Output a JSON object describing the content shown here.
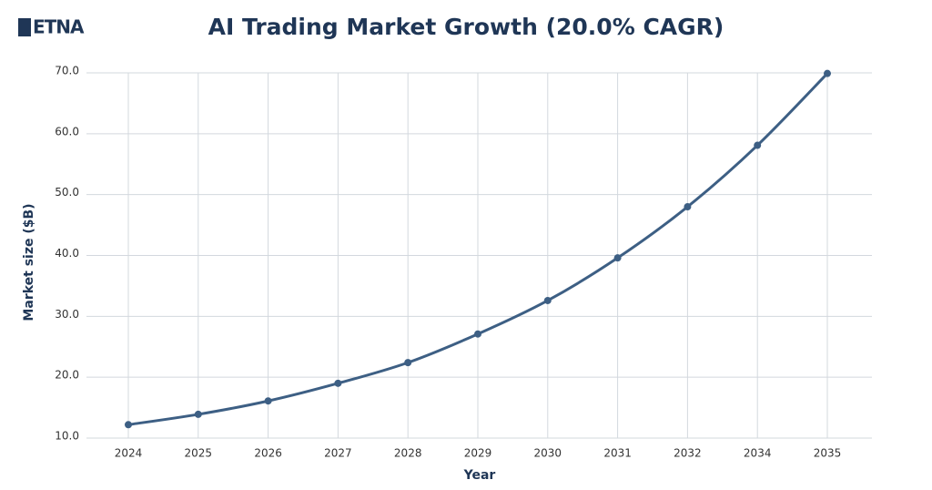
{
  "logo": "ETNA",
  "chart_data": {
    "type": "line",
    "title": "AI Trading Market Growth (20.0% CAGR)",
    "x_label": "Year",
    "y_label": "Market size ($B)",
    "categories": [
      "2024",
      "2025",
      "2026",
      "2027",
      "2028",
      "2029",
      "2030",
      "2031",
      "2032",
      "2034",
      "2035"
    ],
    "series": [
      {
        "name": "Market size",
        "color": "#3d5f84",
        "values": [
          12.2,
          13.9,
          16.1,
          19.0,
          22.4,
          27.1,
          32.6,
          39.6,
          48.0,
          58.1,
          69.9
        ]
      }
    ],
    "ylim": [
      10,
      70
    ],
    "yticks": [
      {
        "value": 10,
        "label": "10.0"
      },
      {
        "value": 20,
        "label": "20.0"
      },
      {
        "value": 30,
        "label": "30.0"
      },
      {
        "value": 40,
        "label": "40.0"
      },
      {
        "value": 50,
        "label": "50.0"
      },
      {
        "value": 60,
        "label": "60.0"
      },
      {
        "value": 70,
        "label": "70.0"
      }
    ],
    "grid": true
  }
}
